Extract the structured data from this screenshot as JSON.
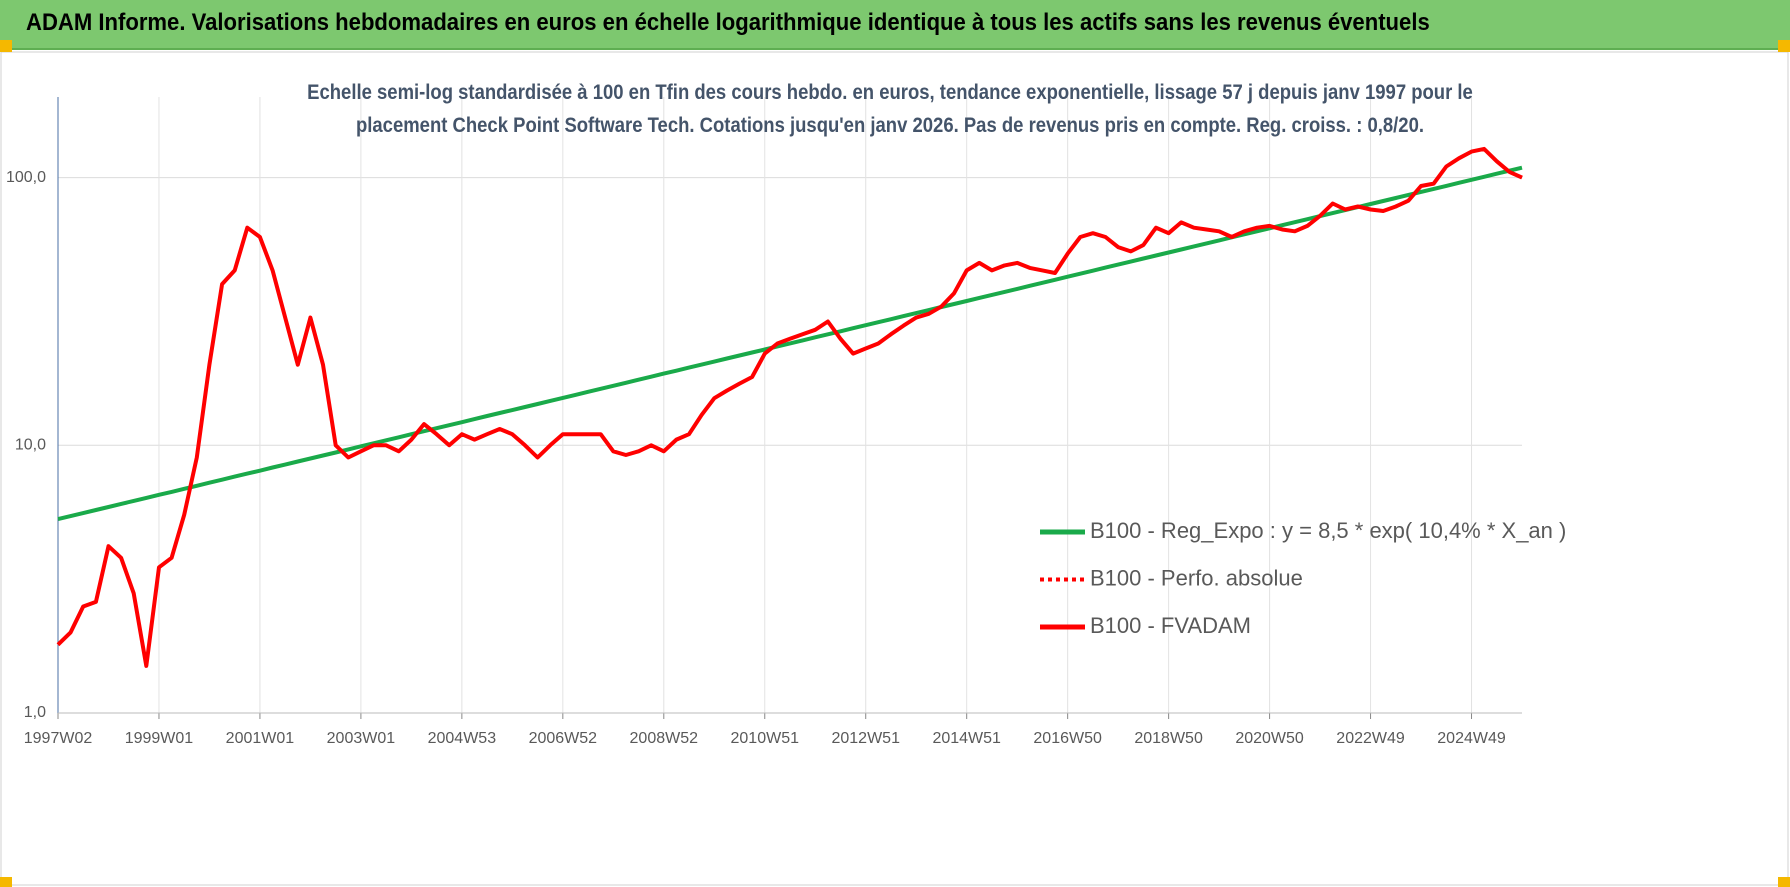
{
  "header": {
    "title": "ADAM Informe. Valorisations hebdomadaires en euros en échelle logarithmique identique à tous les actifs sans les revenus éventuels"
  },
  "chart_data": {
    "type": "line",
    "title": "Echelle semi-log standardisée à 100 en Tfin des cours hebdo. en euros, tendance exponentielle, lissage 57 j depuis janv 1997 pour le placement Check Point Software Tech. Cotations jusqu'en janv 2026. Pas de revenus pris en compte. Reg. croiss. : 0,8/20.",
    "yscale": "log",
    "ylim": [
      1,
      200
    ],
    "yticks": [
      {
        "value": 1,
        "label": "1,0"
      },
      {
        "value": 10,
        "label": "10,0"
      },
      {
        "value": 100,
        "label": "100,0"
      }
    ],
    "grid": true,
    "categories": [
      "1997W02",
      null,
      null,
      null,
      null,
      null,
      null,
      null,
      "1999W01",
      null,
      null,
      null,
      null,
      null,
      null,
      null,
      "2001W01",
      null,
      null,
      null,
      null,
      null,
      null,
      null,
      "2003W01",
      null,
      null,
      null,
      null,
      null,
      null,
      null,
      "2004W53",
      null,
      null,
      null,
      null,
      null,
      null,
      null,
      "2006W52",
      null,
      null,
      null,
      null,
      null,
      null,
      null,
      "2008W52",
      null,
      null,
      null,
      null,
      null,
      null,
      null,
      "2010W51",
      null,
      null,
      null,
      null,
      null,
      null,
      null,
      "2012W51",
      null,
      null,
      null,
      null,
      null,
      null,
      null,
      "2014W51",
      null,
      null,
      null,
      null,
      null,
      null,
      null,
      "2016W50",
      null,
      null,
      null,
      null,
      null,
      null,
      null,
      "2018W50",
      null,
      null,
      null,
      null,
      null,
      null,
      null,
      "2020W50",
      null,
      null,
      null,
      null,
      null,
      null,
      null,
      "2022W49",
      null,
      null,
      null,
      null,
      null,
      null,
      null,
      "2024W49",
      null,
      null,
      null,
      null
    ],
    "series": [
      {
        "name": "B100 - Reg_Expo : y = 8,5 * exp( 10,4% *  X_an )",
        "color": "#1aaa4a",
        "dash": "solid",
        "values": [
          5.3,
          5.44,
          5.58,
          5.73,
          5.88,
          6.04,
          6.2,
          6.36,
          6.53,
          6.7,
          6.88,
          7.06,
          7.25,
          7.44,
          7.64,
          7.84,
          8.04,
          8.26,
          8.47,
          8.7,
          8.93,
          9.16,
          9.4,
          9.65,
          9.91,
          10.17,
          10.44,
          10.71,
          11.0,
          11.29,
          11.58,
          11.89,
          12.2,
          12.53,
          12.86,
          13.2,
          13.54,
          13.9,
          14.27,
          14.65,
          15.03,
          15.43,
          15.84,
          16.25,
          16.68,
          17.12,
          17.58,
          18.04,
          18.52,
          19.0,
          19.5,
          20.02,
          20.55,
          21.09,
          21.65,
          22.22,
          22.8,
          23.41,
          24.02,
          24.66,
          25.31,
          25.98,
          26.66,
          27.37,
          28.09,
          28.83,
          29.59,
          30.37,
          31.18,
          32.0,
          32.84,
          33.71,
          34.6,
          35.52,
          36.45,
          37.42,
          38.4,
          39.42,
          40.46,
          41.53,
          42.62,
          43.75,
          44.9,
          46.09,
          47.3,
          48.55,
          49.84,
          51.15,
          52.5,
          53.89,
          55.31,
          56.77,
          58.27,
          59.81,
          61.39,
          63.01,
          64.67,
          66.38,
          68.13,
          69.93,
          71.78,
          73.67,
          75.62,
          77.61,
          79.66,
          81.76,
          83.92,
          86.14,
          88.41,
          90.74,
          93.14,
          95.6,
          98.12,
          100.71,
          103.37,
          106.1,
          108.9
        ]
      },
      {
        "name": "B100 - Perfo. absolue",
        "color": "#ff0000",
        "dash": "dotted",
        "values": [
          1.8,
          2.0,
          2.5,
          2.6,
          4.2,
          3.8,
          2.8,
          1.5,
          3.5,
          3.8,
          5.5,
          9,
          20,
          40,
          45,
          65,
          60,
          45,
          30,
          20,
          30,
          20,
          10,
          9,
          9.5,
          10,
          10,
          9.5,
          10.5,
          12,
          11,
          10,
          11,
          10.5,
          11,
          11.5,
          11,
          10,
          9,
          10,
          11,
          11,
          11,
          11,
          9.5,
          9.2,
          9.5,
          10,
          9.5,
          10.5,
          11,
          13,
          15,
          16,
          17,
          18,
          22,
          24,
          25,
          26,
          27,
          29,
          25,
          22,
          23,
          24,
          26,
          28,
          30,
          31,
          33,
          37,
          45,
          48,
          45,
          47,
          48,
          46,
          45,
          44,
          52,
          60,
          62,
          60,
          55,
          53,
          56,
          65,
          62,
          68,
          65,
          64,
          63,
          60,
          63,
          65,
          66,
          64,
          63,
          66,
          72,
          80,
          76,
          78,
          76,
          75,
          78,
          82,
          93,
          95,
          110,
          118,
          125,
          128,
          115,
          105,
          100
        ]
      },
      {
        "name": "B100 - FVADAM",
        "color": "#ff0000",
        "dash": "solid",
        "values": [
          1.8,
          2.0,
          2.5,
          2.6,
          4.2,
          3.8,
          2.8,
          1.5,
          3.5,
          3.8,
          5.5,
          9,
          20,
          40,
          45,
          65,
          60,
          45,
          30,
          20,
          30,
          20,
          10,
          9,
          9.5,
          10,
          10,
          9.5,
          10.5,
          12,
          11,
          10,
          11,
          10.5,
          11,
          11.5,
          11,
          10,
          9,
          10,
          11,
          11,
          11,
          11,
          9.5,
          9.2,
          9.5,
          10,
          9.5,
          10.5,
          11,
          13,
          15,
          16,
          17,
          18,
          22,
          24,
          25,
          26,
          27,
          29,
          25,
          22,
          23,
          24,
          26,
          28,
          30,
          31,
          33,
          37,
          45,
          48,
          45,
          47,
          48,
          46,
          45,
          44,
          52,
          60,
          62,
          60,
          55,
          53,
          56,
          65,
          62,
          68,
          65,
          64,
          63,
          60,
          63,
          65,
          66,
          64,
          63,
          66,
          72,
          80,
          76,
          78,
          76,
          75,
          78,
          82,
          93,
          95,
          110,
          118,
          125,
          128,
          115,
          105,
          100
        ]
      }
    ]
  }
}
